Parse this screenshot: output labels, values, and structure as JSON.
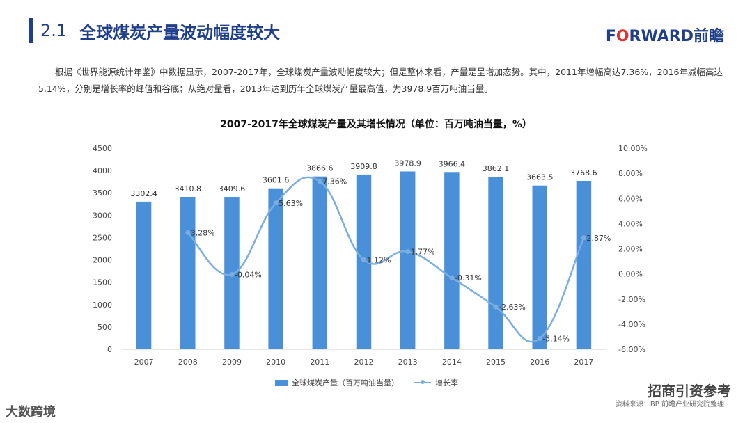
{
  "header": {
    "section_num": "2.1",
    "section_title": "全球煤炭产量波动幅度较大",
    "logo_main": "F",
    "logo_o": "O",
    "logo_rest": "RWARD前瞻"
  },
  "paragraph": "根据《世界能源统计年鉴》中数据显示，2007-2017年，全球煤炭产量波动幅度较大；但是整体来看，产量是呈增加态势。其中，2011年增幅高达7.36%，2016年减幅高达5.14%，分别是增长率的峰值和谷底；从绝对量看，2013年达到历年全球煤炭产量最高值，为3978.9百万吨油当量。",
  "chart_data": {
    "type": "bar",
    "title": "2007-2017年全球煤炭产量及其增长情况（单位：百万吨油当量，%）",
    "categories": [
      "2007",
      "2008",
      "2009",
      "2010",
      "2011",
      "2012",
      "2013",
      "2014",
      "2015",
      "2016",
      "2017"
    ],
    "series": [
      {
        "name": "全球煤炭产量（百万吨油当量）",
        "type": "bar",
        "axis": "left",
        "values": [
          3302.4,
          3410.8,
          3409.6,
          3601.6,
          3866.6,
          3909.8,
          3978.9,
          3966.4,
          3862.1,
          3663.5,
          3768.6
        ],
        "labels": [
          "3302.4",
          "3410.8",
          "3409.6",
          "3601.6",
          "3866.6",
          "3909.8",
          "3978.9",
          "3966.4",
          "3862.1",
          "3663.5",
          "3768.6"
        ]
      },
      {
        "name": "增长率",
        "type": "line",
        "axis": "right",
        "values": [
          null,
          3.28,
          -0.04,
          5.63,
          7.36,
          1.12,
          1.77,
          -0.31,
          -2.63,
          -5.14,
          2.87
        ],
        "labels": [
          "",
          "3.28%",
          "-0.04%",
          "5.63%",
          "7.36%",
          "1.12%",
          "1.77%",
          "-0.31%",
          "-2.63%",
          "-5.14%",
          "2.87%"
        ]
      }
    ],
    "ylim_left": [
      0,
      4500
    ],
    "yticks_left": [
      "0",
      "500",
      "1000",
      "1500",
      "2000",
      "2500",
      "3000",
      "3500",
      "4000",
      "4500"
    ],
    "ylim_right": [
      -6,
      10
    ],
    "yticks_right": [
      "-6.00%",
      "-4.00%",
      "-2.00%",
      "0.00%",
      "2.00%",
      "4.00%",
      "6.00%",
      "8.00%",
      "10.00%"
    ],
    "colors": {
      "bar": "#4a90d9",
      "line": "#7aaee0"
    },
    "legend_position": "bottom"
  },
  "legend": {
    "bar_label": "全球煤炭产量（百万吨油当量）",
    "line_label": "增长率"
  },
  "footer": {
    "source": "资料来源：BP 前瞻产业研究院整理",
    "watermark_left": "大数跨境",
    "watermark_right": "招商引资参考"
  }
}
